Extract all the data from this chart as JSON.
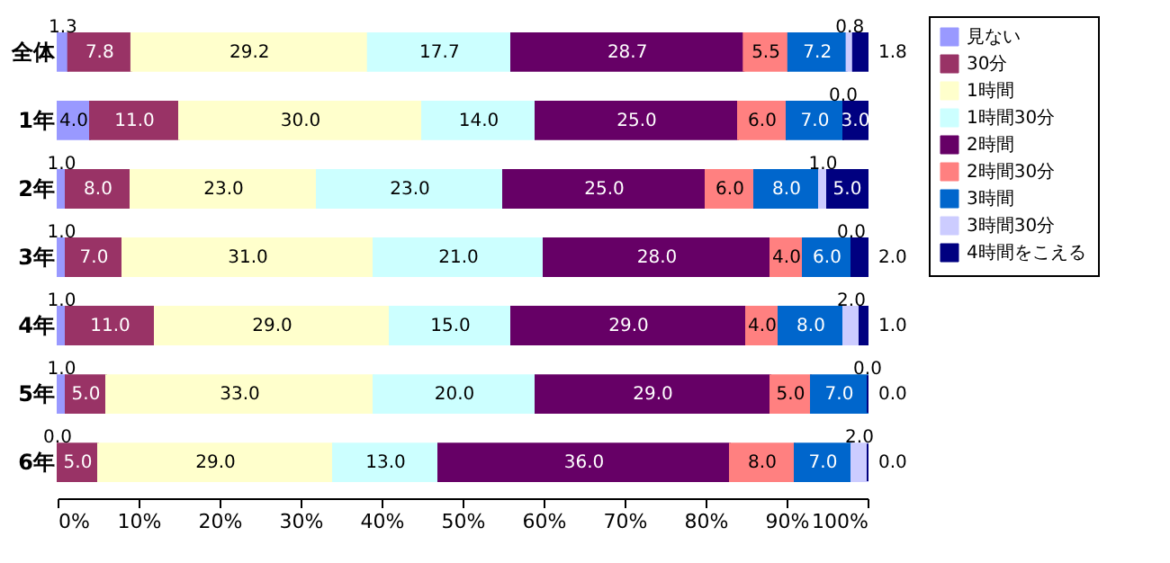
{
  "chart_data": {
    "type": "bar",
    "orientation": "horizontal",
    "stacked": true,
    "legend": "right",
    "grid": false,
    "categories": [
      "全体",
      "1年",
      "2年",
      "3年",
      "4年",
      "5年",
      "6年"
    ],
    "xlim": [
      0,
      100
    ],
    "xticks": [
      {
        "value": 0,
        "label": "0%"
      },
      {
        "value": 10,
        "label": "10%"
      },
      {
        "value": 20,
        "label": "20%"
      },
      {
        "value": 30,
        "label": "30%"
      },
      {
        "value": 40,
        "label": "40%"
      },
      {
        "value": 50,
        "label": "50%"
      },
      {
        "value": 60,
        "label": "60%"
      },
      {
        "value": 70,
        "label": "70%"
      },
      {
        "value": 80,
        "label": "80%"
      },
      {
        "value": 90,
        "label": "90%"
      },
      {
        "value": 100,
        "label": "100%"
      }
    ],
    "series": [
      {
        "name": "見ない",
        "color": "#9999ff",
        "values": [
          1.3,
          4,
          1,
          1,
          1,
          1,
          0
        ],
        "value_labels": [
          "1.3",
          "4.0",
          "1.0",
          "1.0",
          "1.0",
          "1.0",
          "0.0"
        ]
      },
      {
        "name": "30分",
        "color": "#993366",
        "values": [
          7.8,
          11,
          8,
          7,
          11,
          5,
          5
        ],
        "value_labels": [
          "7.8",
          "11.0",
          "8.0",
          "7.0",
          "11.0",
          "5.0",
          "5.0"
        ]
      },
      {
        "name": "1時間",
        "color": "#ffffcc",
        "values": [
          29.2,
          30,
          23,
          31,
          29,
          33,
          29
        ],
        "value_labels": [
          "29.2",
          "30.0",
          "23.0",
          "31.0",
          "29.0",
          "33.0",
          "29.0"
        ]
      },
      {
        "name": "1時間30分",
        "color": "#ccffff",
        "values": [
          17.7,
          14,
          23,
          21,
          15,
          20,
          13
        ],
        "value_labels": [
          "17.7",
          "14.0",
          "23.0",
          "21.0",
          "15.0",
          "20.0",
          "13.0"
        ]
      },
      {
        "name": "2時間",
        "color": "#660066",
        "values": [
          28.7,
          25,
          25,
          28,
          29,
          29,
          36
        ],
        "value_labels": [
          "28.7",
          "25.0",
          "25.0",
          "28.0",
          "29.0",
          "29.0",
          "36.0"
        ]
      },
      {
        "name": "2時間30分",
        "color": "#ff8080",
        "values": [
          5.5,
          6,
          6,
          4,
          4,
          5,
          8
        ],
        "value_labels": [
          "5.5",
          "6.0",
          "6.0",
          "4.0",
          "4.0",
          "5.0",
          "8.0"
        ]
      },
      {
        "name": "3時間",
        "color": "#0066cc",
        "values": [
          7.2,
          7,
          8,
          6,
          8,
          7,
          7
        ],
        "value_labels": [
          "7.2",
          "7.0",
          "8.0",
          "6.0",
          "8.0",
          "7.0",
          "7.0"
        ]
      },
      {
        "name": "3時間30分",
        "color": "#ccccff",
        "values": [
          0.8,
          0,
          1,
          0,
          2,
          0,
          2
        ],
        "value_labels": [
          "0.8",
          "0.0",
          "1.0",
          "0.0",
          "2.0",
          "0.0",
          "2.0"
        ]
      },
      {
        "name": "4時間をこえる",
        "color": "#000080",
        "values": [
          1.8,
          3,
          5,
          2,
          1,
          0,
          0
        ],
        "value_labels": [
          "1.8",
          "3.0",
          "5.0",
          "2.0",
          "1.0",
          "0.0",
          "0.0"
        ]
      }
    ]
  }
}
